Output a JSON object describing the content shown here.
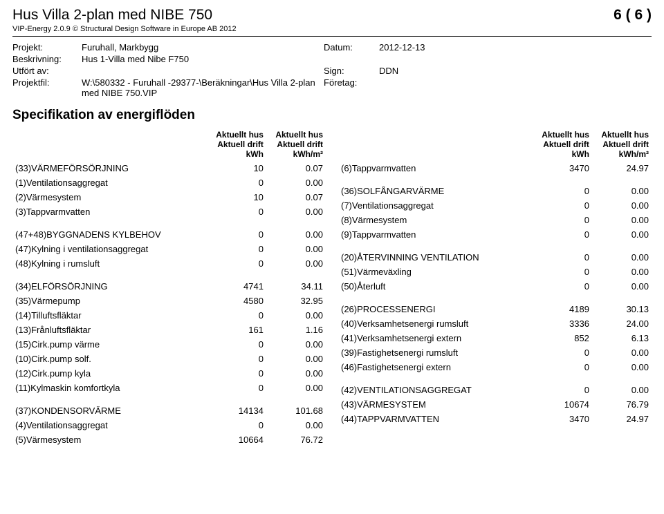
{
  "header": {
    "title": "Hus Villa 2-plan med NIBE 750",
    "subtitle": "VIP-Energy 2.0.9 © Structural Design Software in Europe AB 2012",
    "page": "6 ( 6 )"
  },
  "info": {
    "projekt_label": "Projekt:",
    "projekt": "Furuhall, Markbygg",
    "beskrivning_label": "Beskrivning:",
    "beskrivning": "Hus 1-Villa med Nibe F750",
    "utfort_label": "Utfört av:",
    "utfort": "",
    "projektfil_label": "Projektfil:",
    "projektfil": "W:\\580332 - Furuhall -29377-\\Beräkningar\\Hus Villa 2-plan med NIBE 750.VIP",
    "datum_label": "Datum:",
    "datum": "2012-12-13",
    "sign_label": "Sign:",
    "sign": "DDN",
    "foretag_label": "Företag:",
    "foretag": ""
  },
  "section_title": "Specifikation av energiflöden",
  "col_headers": {
    "h1": "Aktuellt hus",
    "h2": "Aktuell drift",
    "h3_kwh": "kWh",
    "h3_kwhm2": "kWh/m²"
  },
  "left": [
    {
      "label": "(33)VÄRMEFÖRSÖRJNING",
      "v1": "10",
      "v2": "0.07"
    },
    {
      "label": "(1)Ventilationsaggregat",
      "v1": "0",
      "v2": "0.00"
    },
    {
      "label": "(2)Värmesystem",
      "v1": "10",
      "v2": "0.07"
    },
    {
      "label": "(3)Tappvarmvatten",
      "v1": "0",
      "v2": "0.00"
    },
    {
      "spacer": true
    },
    {
      "label": "(47+48)BYGGNADENS KYLBEHOV",
      "v1": "0",
      "v2": "0.00"
    },
    {
      "label": "(47)Kylning i ventilationsaggregat",
      "v1": "0",
      "v2": "0.00"
    },
    {
      "label": "(48)Kylning i rumsluft",
      "v1": "0",
      "v2": "0.00"
    },
    {
      "spacer": true
    },
    {
      "label": "(34)ELFÖRSÖRJNING",
      "v1": "4741",
      "v2": "34.11"
    },
    {
      "label": "(35)Värmepump",
      "v1": "4580",
      "v2": "32.95"
    },
    {
      "label": "(14)Tilluftsfläktar",
      "v1": "0",
      "v2": "0.00"
    },
    {
      "label": "(13)Frånluftsfläktar",
      "v1": "161",
      "v2": "1.16"
    },
    {
      "label": "(15)Cirk.pump värme",
      "v1": "0",
      "v2": "0.00"
    },
    {
      "label": "(10)Cirk.pump solf.",
      "v1": "0",
      "v2": "0.00"
    },
    {
      "label": "(12)Cirk.pump kyla",
      "v1": "0",
      "v2": "0.00"
    },
    {
      "label": "(11)Kylmaskin komfortkyla",
      "v1": "0",
      "v2": "0.00"
    },
    {
      "spacer": true
    },
    {
      "label": "(37)KONDENSORVÄRME",
      "v1": "14134",
      "v2": "101.68"
    },
    {
      "label": "(4)Ventilationsaggregat",
      "v1": "0",
      "v2": "0.00"
    },
    {
      "label": "(5)Värmesystem",
      "v1": "10664",
      "v2": "76.72"
    }
  ],
  "right": [
    {
      "label": "(6)Tappvarmvatten",
      "v1": "3470",
      "v2": "24.97"
    },
    {
      "spacer": true
    },
    {
      "label": "(36)SOLFÅNGARVÄRME",
      "v1": "0",
      "v2": "0.00"
    },
    {
      "label": "(7)Ventilationsaggregat",
      "v1": "0",
      "v2": "0.00"
    },
    {
      "label": "(8)Värmesystem",
      "v1": "0",
      "v2": "0.00"
    },
    {
      "label": "(9)Tappvarmvatten",
      "v1": "0",
      "v2": "0.00"
    },
    {
      "spacer": true
    },
    {
      "label": "(20)ÅTERVINNING VENTILATION",
      "v1": "0",
      "v2": "0.00"
    },
    {
      "label": "(51)Värmeväxling",
      "v1": "0",
      "v2": "0.00"
    },
    {
      "label": "(50)Återluft",
      "v1": "0",
      "v2": "0.00"
    },
    {
      "spacer": true
    },
    {
      "label": "(26)PROCESSENERGI",
      "v1": "4189",
      "v2": "30.13"
    },
    {
      "label": "(40)Verksamhetsenergi rumsluft",
      "v1": "3336",
      "v2": "24.00"
    },
    {
      "label": "(41)Verksamhetsenergi extern",
      "v1": "852",
      "v2": "6.13"
    },
    {
      "label": "(39)Fastighetsenergi rumsluft",
      "v1": "0",
      "v2": "0.00"
    },
    {
      "label": "(46)Fastighetsenergi extern",
      "v1": "0",
      "v2": "0.00"
    },
    {
      "spacer": true
    },
    {
      "label": "(42)VENTILATIONSAGGREGAT",
      "v1": "0",
      "v2": "0.00"
    },
    {
      "label": "(43)VÄRMESYSTEM",
      "v1": "10674",
      "v2": "76.79"
    },
    {
      "label": "(44)TAPPVARMVATTEN",
      "v1": "3470",
      "v2": "24.97"
    }
  ]
}
